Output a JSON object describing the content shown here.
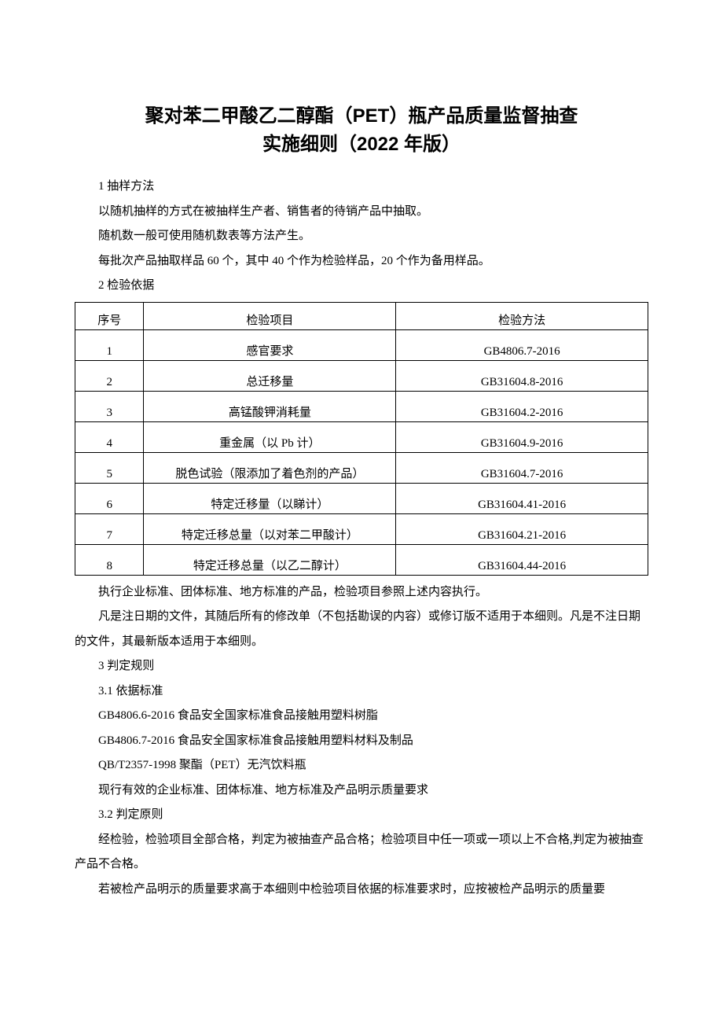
{
  "title_line1": "聚对苯二甲酸乙二醇酯（PET）瓶产品质量监督抽查",
  "title_line2": "实施细则（2022 年版）",
  "sec1_heading": "1 抽样方法",
  "sec1_p1": "以随机抽样的方式在被抽样生产者、销售者的待销产品中抽取。",
  "sec1_p2": "随机数一般可使用随机数表等方法产生。",
  "sec1_p3": "每批次产品抽取样品 60 个，其中 40 个作为检验样品，20 个作为备用样品。",
  "sec2_heading": "2 检验依据",
  "table": {
    "columns": [
      "序号",
      "检验项目",
      "检验方法"
    ],
    "rows": [
      [
        "1",
        "感官要求",
        "GB4806.7-2016"
      ],
      [
        "2",
        "总迁移量",
        "GB31604.8-2016"
      ],
      [
        "3",
        "高锰酸钾消耗量",
        "GB31604.2-2016"
      ],
      [
        "4",
        "重金属（以 Pb 计）",
        "GB31604.9-2016"
      ],
      [
        "5",
        "脱色试验（限添加了着色剂的产品）",
        "GB31604.7-2016"
      ],
      [
        "6",
        "特定迁移量（以睇计）",
        "GB31604.41-2016"
      ],
      [
        "7",
        "特定迁移总量（以对苯二甲酸计）",
        "GB31604.21-2016"
      ],
      [
        "8",
        "特定迁移总量（以乙二醇计）",
        "GB31604.44-2016"
      ]
    ]
  },
  "after_table_p1": "执行企业标准、团体标准、地方标准的产品，检验项目参照上述内容执行。",
  "after_table_p2": "凡是注日期的文件，其随后所有的修改单（不包括勘误的内容）或修订版不适用于本细则。凡是不注日期的文件，其最新版本适用于本细则。",
  "sec3_heading": "3 判定规则",
  "sec3_1_heading": "3.1  依据标准",
  "sec3_1_p1": "GB4806.6-2016 食品安全国家标准食品接触用塑料树脂",
  "sec3_1_p2": "GB4806.7-2016 食品安全国家标准食品接触用塑料材料及制品",
  "sec3_1_p3": "QB/T2357-1998 聚酯（PET）无汽饮料瓶",
  "sec3_1_p4": "现行有效的企业标准、团体标准、地方标准及产品明示质量要求",
  "sec3_2_heading": "3.2  判定原则",
  "sec3_2_p1": "经检验，检验项目全部合格，判定为被抽查产品合格；检验项目中任一项或一项以上不合格,判定为被抽查产品不合格。",
  "sec3_2_p2": "若被检产品明示的质量要求高于本细则中检验项目依据的标准要求时，应按被检产品明示的质量要"
}
